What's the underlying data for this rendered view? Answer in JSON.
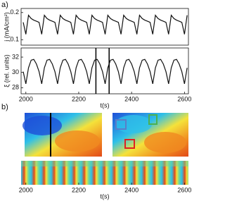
{
  "panel_labels": [
    "a)",
    "b)"
  ],
  "chart_data": [
    {
      "type": "line",
      "ylabel": "j (mA/cm²)",
      "color": "#111111",
      "xlim": [
        1982,
        2615
      ],
      "ylim": [
        0.08,
        0.215
      ],
      "yticks": [
        0.1,
        0.2
      ],
      "x": [
        1990,
        2000,
        2010,
        2020,
        2030,
        2040,
        2050,
        2060,
        2070,
        2080,
        2090,
        2100,
        2110,
        2120,
        2130,
        2140,
        2150,
        2160,
        2170,
        2180,
        2190,
        2200,
        2210,
        2220,
        2230,
        2240,
        2250,
        2260,
        2270,
        2280,
        2290,
        2300,
        2310,
        2320,
        2330,
        2340,
        2350,
        2360,
        2370,
        2380,
        2390,
        2400,
        2410,
        2420,
        2430,
        2440,
        2450,
        2460,
        2470,
        2480,
        2490,
        2500,
        2510,
        2520,
        2530,
        2540,
        2550,
        2560,
        2570,
        2580,
        2590,
        2600,
        2610
      ],
      "values": [
        0.164,
        0.12,
        0.19,
        0.178,
        0.172,
        0.168,
        0.164,
        0.12,
        0.19,
        0.178,
        0.172,
        0.168,
        0.164,
        0.12,
        0.19,
        0.178,
        0.172,
        0.168,
        0.164,
        0.12,
        0.19,
        0.178,
        0.172,
        0.168,
        0.164,
        0.12,
        0.19,
        0.178,
        0.172,
        0.168,
        0.164,
        0.12,
        0.19,
        0.178,
        0.172,
        0.168,
        0.164,
        0.12,
        0.19,
        0.178,
        0.172,
        0.168,
        0.164,
        0.12,
        0.19,
        0.178,
        0.172,
        0.168,
        0.164,
        0.12,
        0.19,
        0.178,
        0.172,
        0.168,
        0.164,
        0.12,
        0.19,
        0.178,
        0.172,
        0.168,
        0.164,
        0.12,
        0.19
      ]
    },
    {
      "type": "line",
      "ylabel": "ξ (rel. units)",
      "xlabel": "t(s)",
      "color": "#111111",
      "xlim": [
        1982,
        2615
      ],
      "ylim": [
        27.2,
        33.2
      ],
      "yticks": [
        28,
        30,
        32
      ],
      "xticks": [
        2000,
        2200,
        2400,
        2600
      ],
      "vlines": [
        2265,
        2315
      ],
      "x": [
        1990,
        2000,
        2010,
        2020,
        2030,
        2040,
        2050,
        2060,
        2070,
        2080,
        2090,
        2100,
        2110,
        2120,
        2130,
        2140,
        2150,
        2160,
        2170,
        2180,
        2190,
        2200,
        2210,
        2220,
        2230,
        2240,
        2250,
        2260,
        2270,
        2280,
        2290,
        2300,
        2310,
        2320,
        2330,
        2340,
        2350,
        2360,
        2370,
        2380,
        2390,
        2400,
        2410,
        2420,
        2430,
        2440,
        2450,
        2460,
        2470,
        2480,
        2490,
        2500,
        2510,
        2520,
        2530,
        2540,
        2550,
        2560,
        2570,
        2580,
        2590,
        2600,
        2610
      ],
      "values": [
        30.1,
        28.5,
        30.6,
        31.6,
        31.7,
        31.1,
        30.1,
        28.5,
        30.6,
        31.6,
        31.7,
        31.1,
        30.1,
        28.5,
        30.6,
        31.6,
        31.7,
        31.1,
        30.1,
        28.5,
        30.6,
        31.6,
        31.7,
        31.1,
        30.1,
        28.5,
        30.6,
        31.6,
        31.7,
        31.1,
        30.1,
        28.5,
        30.6,
        31.6,
        31.7,
        31.1,
        30.1,
        28.5,
        30.6,
        31.6,
        31.7,
        31.1,
        30.1,
        28.5,
        30.6,
        31.6,
        31.7,
        31.1,
        30.1,
        28.5,
        30.6,
        31.6,
        31.7,
        31.1,
        30.1,
        28.5,
        30.6,
        31.6,
        31.7,
        31.1,
        30.1,
        28.5,
        30.6
      ]
    },
    {
      "type": "image",
      "xlabel": "t(s)",
      "xlim": [
        1982,
        2615
      ],
      "xticks": [
        2000,
        2200,
        2400,
        2600
      ]
    }
  ]
}
